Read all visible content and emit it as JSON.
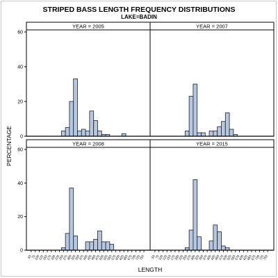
{
  "chart_data": {
    "type": "bar",
    "title": "STRIPED BASS LENGTH FREQUENCY DISTRIBUTIONS",
    "subtitle": "LAKE=BADIN",
    "xlabel": "LENGTH",
    "ylabel": "PERCENTAGE",
    "ylim": [
      0,
      60
    ],
    "yticks": [
      0,
      20,
      40,
      60
    ],
    "grid": false,
    "colors": {
      "bar_fill": "#b4c8e4",
      "bar_stroke": "#1e1e1e",
      "panel_header": "#ffffff"
    },
    "x_tick_labels": [
      "50",
      "75",
      "100",
      "125",
      "150",
      "175",
      "200",
      "225",
      "250",
      "275",
      "300",
      "325",
      "350",
      "375",
      "400",
      "425",
      "450",
      "475",
      "500",
      "525",
      "550",
      "575",
      "600",
      "625",
      "650",
      "675",
      "700",
      "725",
      "750"
    ],
    "categories": [
      "50",
      "75",
      "100",
      "125",
      "150",
      "175",
      "200",
      "225",
      "250",
      "275",
      "300",
      "325",
      "350",
      "375",
      "400",
      "425",
      "450",
      "475",
      "500",
      "525",
      "550",
      "575",
      "600",
      "625",
      "650",
      "675",
      "700",
      "725",
      "750"
    ],
    "panels": [
      {
        "label": "YEAR = 2005",
        "values": [
          0,
          0,
          0,
          0,
          0,
          0,
          0,
          0,
          3,
          5,
          20,
          33,
          3,
          4,
          3,
          14.5,
          9,
          3,
          1,
          1,
          0,
          0,
          0,
          1.5,
          0,
          0,
          0,
          0,
          0
        ]
      },
      {
        "label": "YEAR = 2007",
        "values": [
          0,
          0,
          0,
          0,
          0,
          0,
          0,
          0,
          3,
          23,
          30,
          2,
          2,
          0,
          3,
          3,
          5.5,
          8.5,
          13.5,
          4,
          1,
          0,
          0,
          0,
          0,
          0,
          0,
          0,
          0
        ]
      },
      {
        "label": "YEAR = 2008",
        "values": [
          0,
          0,
          0,
          0,
          0,
          0,
          0,
          0,
          1.5,
          10,
          37,
          8.5,
          0,
          0,
          5,
          5,
          6.5,
          11.5,
          5,
          5,
          3.5,
          0,
          0,
          0,
          0,
          0,
          0,
          0,
          0
        ]
      },
      {
        "label": "YEAR = 2015",
        "values": [
          0,
          0,
          0,
          0,
          0,
          0,
          0,
          0,
          1.5,
          12,
          42,
          8,
          0,
          0,
          5.5,
          15,
          11,
          2.5,
          1.5,
          0,
          0,
          0,
          0,
          0,
          0,
          0,
          0,
          0,
          0
        ]
      }
    ]
  }
}
